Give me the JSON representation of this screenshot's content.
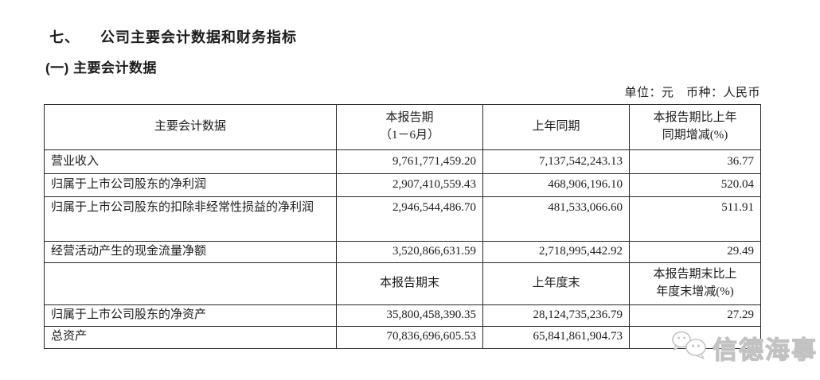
{
  "page": {
    "heading_number": "七、",
    "heading_title": "公司主要会计数据和财务指标",
    "subheading": "(一) 主要会计数据",
    "unit_note": "单位：元　币种：人民币"
  },
  "table": {
    "rows": [
      {
        "type": "header",
        "cells": [
          "主要会计数据",
          "本报告期\n（1－6月）",
          "上年同期",
          "本报告期比上年\n同期增减(%)"
        ]
      },
      {
        "type": "data",
        "cells": [
          "营业收入",
          "9,761,771,459.20",
          "7,137,542,243.13",
          "36.77"
        ]
      },
      {
        "type": "data",
        "cells": [
          "归属于上市公司股东的净利润",
          "2,907,410,559.43",
          "468,906,196.10",
          "520.04"
        ]
      },
      {
        "type": "data",
        "cells": [
          "归属于上市公司股东的扣除非经常性损益的净利润",
          "2,946,544,486.70",
          "481,533,066.60",
          "511.91"
        ]
      },
      {
        "type": "data",
        "cells": [
          "经营活动产生的现金流量净额",
          "3,520,866,631.59",
          "2,718,995,442.92",
          "29.49"
        ]
      },
      {
        "type": "header",
        "cells": [
          "",
          "本报告期末",
          "上年度末",
          "本报告期末比上\n年度末增减(%)"
        ]
      },
      {
        "type": "data",
        "cells": [
          "归属于上市公司股东的净资产",
          "35,800,458,390.35",
          "28,124,735,236.79",
          "27.29"
        ]
      },
      {
        "type": "data",
        "cells": [
          "总资产",
          "70,836,696,605.53",
          "65,841,861,904.73",
          ""
        ]
      }
    ]
  },
  "watermark": {
    "text": "信德海事",
    "icon": "wechat-icon",
    "color": "#c6c6c6"
  },
  "colors": {
    "text": "#1c1c1c",
    "table_border": "#262626",
    "watermark": "#c6c6c6"
  }
}
